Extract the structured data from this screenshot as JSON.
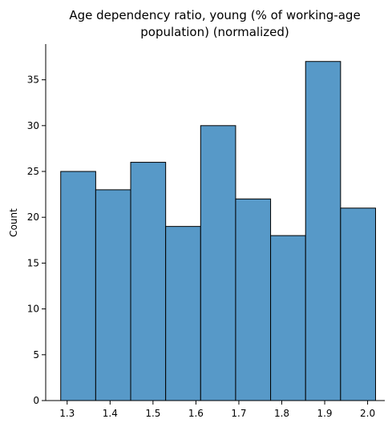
{
  "chart_data": {
    "type": "bar",
    "title_lines": [
      "Age dependency ratio, young (% of working-age",
      "population) (normalized)"
    ],
    "xlabel": "",
    "ylabel": "Count",
    "bins": [
      {
        "x0": 1.285,
        "x1": 1.3665,
        "count": 25
      },
      {
        "x0": 1.3665,
        "x1": 1.448,
        "count": 23
      },
      {
        "x0": 1.448,
        "x1": 1.5295,
        "count": 26
      },
      {
        "x0": 1.5295,
        "x1": 1.611,
        "count": 19
      },
      {
        "x0": 1.611,
        "x1": 1.6925,
        "count": 30
      },
      {
        "x0": 1.6925,
        "x1": 1.774,
        "count": 22
      },
      {
        "x0": 1.774,
        "x1": 1.8555,
        "count": 18
      },
      {
        "x0": 1.8555,
        "x1": 1.937,
        "count": 37
      },
      {
        "x0": 1.937,
        "x1": 2.0185,
        "count": 21
      }
    ],
    "xlim": [
      1.25,
      2.04
    ],
    "ylim": [
      0,
      38.9
    ],
    "x_ticks": [
      "1.3",
      "1.4",
      "1.5",
      "1.6",
      "1.7",
      "1.8",
      "1.9",
      "2.0"
    ],
    "y_ticks": [
      "0",
      "5",
      "10",
      "15",
      "20",
      "25",
      "30",
      "35"
    ],
    "bar_color": "#5799c8",
    "edge_color": "#000000",
    "grid": false
  }
}
